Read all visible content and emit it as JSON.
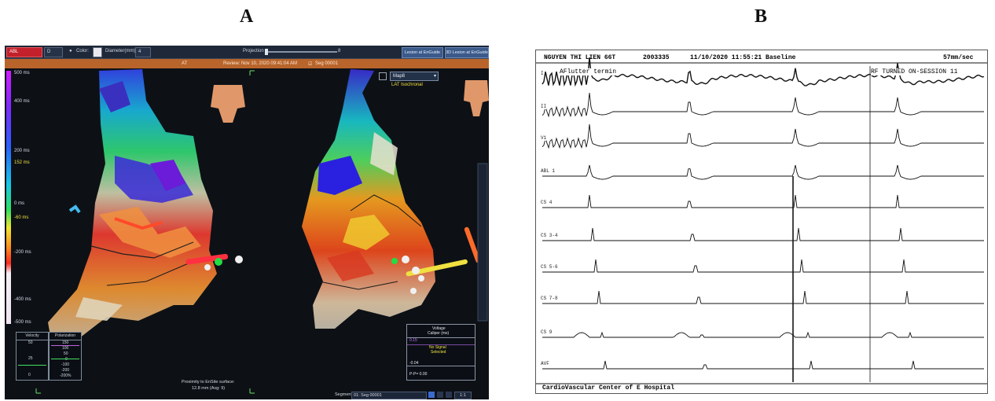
{
  "labels": {
    "a": "A",
    "b": "B"
  },
  "panel_a": {
    "toolbar": {
      "catheter": "ABL",
      "d_select": "D",
      "color_label": "Color:",
      "diameter_label": "Diameter(mm):",
      "diameter_value": "4",
      "projection_label": "Projection",
      "projection_value": "8",
      "btn_lesion": "Lesion at EnGuide",
      "btn_3d_lesion": "3D Lesion at EnGuide"
    },
    "header": {
      "mode": "AT",
      "review": "Review: Nov 10, 2020 09:41:04 AM",
      "seg": "Seg 00001"
    },
    "map_dropdown": "Map8",
    "map_type": "LAT Isochronal",
    "scale": {
      "top": "500 ms",
      "s400": "400 ms",
      "s200": "200 ms",
      "s152": "152 ms",
      "s0": "0 ms",
      "sm60": "-60 ms",
      "sm200": "-200 ms",
      "sm400": "-400 ms",
      "sm500": "-500 ms"
    },
    "velocity_box": {
      "title": "Velocity",
      "v1": "50",
      "v2": "25",
      "v3": "0"
    },
    "polarization_box": {
      "title": "Polarization",
      "t1": "150",
      "t2": "100",
      "t3": "50",
      "t4": "0",
      "t5": "-100",
      "t6": "-200",
      "t7": "-200%"
    },
    "voltage_box": {
      "title": "Voltage",
      "subtitle": "Caliper (ms)",
      "v1": "0.15",
      "no_signal": "No Signal",
      "selected": "Selected",
      "v2": "-0.04",
      "pp": "P-P= 0.00"
    },
    "proximity": {
      "line1": "Proximity to EnSite surface:",
      "line2": "12.8 mm (Avg: 9)"
    },
    "segment": {
      "label": "Segment",
      "value": "01: Seg 00001",
      "zoom": "1:1"
    }
  },
  "panel_b": {
    "header": {
      "patient": "NGUYEN THI LIEN 66T",
      "id": "2003335",
      "datetime": "11/10/2020 11:55:21 Baseline",
      "speed": "57mm/sec"
    },
    "annotations": {
      "left": "AFlutter termin",
      "right": "RF TURNED ON-SESSION 11"
    },
    "channels": [
      "I",
      "II",
      "V1",
      "ABL 1",
      "CS 4",
      "CS 3-4",
      "CS 5-6",
      "CS 7-8",
      "CS 9",
      "AVF"
    ],
    "footer": "CardioVascular Center of E Hospital",
    "colors": {
      "trace": "#111111",
      "marker": "#444444"
    }
  }
}
